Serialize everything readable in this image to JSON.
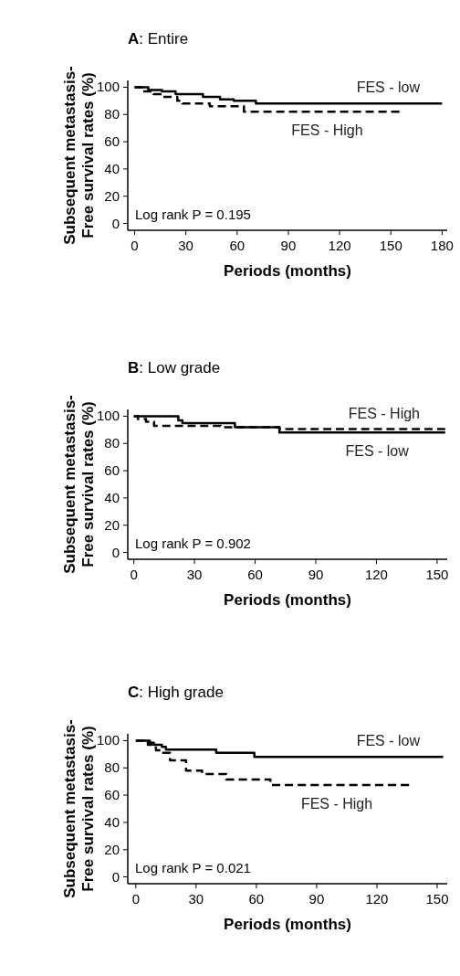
{
  "chart_data": [
    {
      "type": "step",
      "title": "A: Entire",
      "xlabel": "Periods (months)",
      "ylabel": "Subsequent metastasis-\nFree survival rates (%)",
      "xlim": [
        -4,
        183
      ],
      "xticks": [
        0,
        30,
        60,
        90,
        120,
        150,
        180
      ],
      "ylim": [
        -5,
        105
      ],
      "yticks": [
        0,
        20,
        40,
        60,
        80,
        100
      ],
      "grid": false,
      "legend": false,
      "marker": "none",
      "annotations": [
        "Log rank P = 0.195"
      ],
      "series": [
        {
          "name": "FES - low",
          "color": "#000000",
          "line_style": "solid",
          "x": [
            0,
            8,
            16,
            24,
            40,
            50,
            58,
            71,
            180
          ],
          "values": [
            100,
            98,
            97,
            95,
            93,
            91,
            90,
            88,
            88
          ]
        },
        {
          "name": "FES - High",
          "color": "#000000",
          "line_style": "dashed",
          "x": [
            0,
            5,
            11,
            16,
            25,
            28,
            44,
            64,
            155
          ],
          "values": [
            100,
            97,
            95,
            93,
            90,
            88,
            86,
            82,
            82
          ]
        }
      ]
    },
    {
      "type": "step",
      "title": "B: Low grade",
      "xlabel": "Periods (months)",
      "ylabel": "Subsequent metastasis-\nFree survival rates (%)",
      "xlim": [
        -3,
        155
      ],
      "xticks": [
        0,
        30,
        60,
        90,
        120,
        150
      ],
      "ylim": [
        -5,
        105
      ],
      "yticks": [
        0,
        20,
        40,
        60,
        80,
        100
      ],
      "grid": false,
      "legend": false,
      "marker": "none",
      "annotations": [
        "Log rank P = 0.902"
      ],
      "series": [
        {
          "name": "FES - low",
          "color": "#000000",
          "line_style": "solid",
          "x": [
            0,
            22,
            24,
            50,
            72,
            154
          ],
          "values": [
            100,
            97,
            95,
            92,
            88,
            88
          ]
        },
        {
          "name": "FES - High",
          "color": "#000000",
          "line_style": "dashed",
          "x": [
            0,
            2,
            6,
            10,
            43,
            72,
            154
          ],
          "values": [
            100,
            98,
            96,
            93,
            92,
            90.5,
            90.5
          ]
        }
      ]
    },
    {
      "type": "step",
      "title": "C: High grade",
      "xlabel": "Periods (months)",
      "ylabel": "Subsequent metastasis-\nFree survival rates (%)",
      "xlim": [
        -4,
        155
      ],
      "xticks": [
        0,
        30,
        60,
        90,
        120,
        150
      ],
      "ylim": [
        -5,
        105
      ],
      "yticks": [
        0,
        20,
        40,
        60,
        80,
        100
      ],
      "grid": false,
      "legend": false,
      "marker": "none",
      "annotations": [
        "Log rank P = 0.021"
      ],
      "series": [
        {
          "name": "FES - low",
          "color": "#000000",
          "line_style": "solid",
          "x": [
            0,
            7,
            9,
            13,
            15,
            40,
            59,
            153
          ],
          "values": [
            100,
            98.5,
            97,
            95.5,
            93.5,
            91,
            88,
            88
          ]
        },
        {
          "name": "FES - High",
          "color": "#000000",
          "line_style": "dashed",
          "x": [
            0,
            6,
            8,
            10,
            13,
            17,
            25,
            33,
            45,
            67,
            136
          ],
          "values": [
            100,
            97,
            95,
            93,
            91,
            85.5,
            78,
            75.5,
            71.5,
            67.5,
            67.5
          ]
        }
      ]
    }
  ]
}
